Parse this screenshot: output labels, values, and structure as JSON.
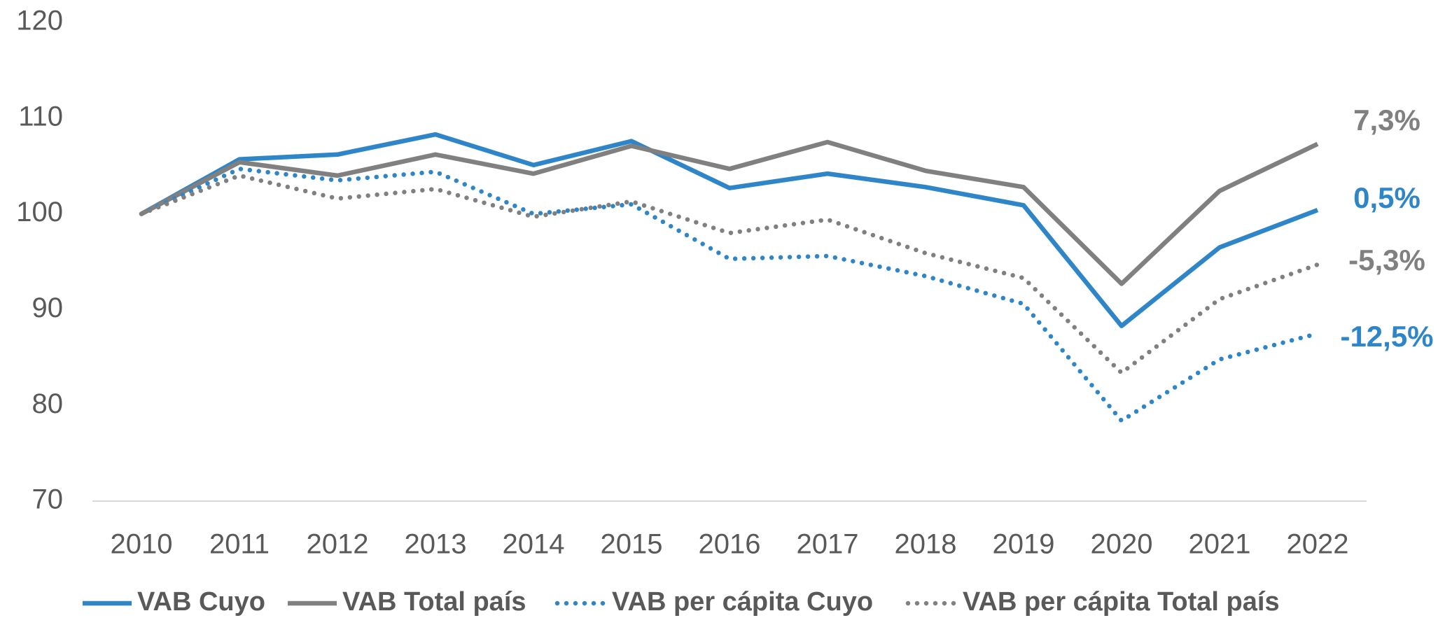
{
  "chart_data": {
    "type": "line",
    "categories": [
      "2010",
      "2011",
      "2012",
      "2013",
      "2014",
      "2015",
      "2016",
      "2017",
      "2018",
      "2019",
      "2020",
      "2021",
      "2022"
    ],
    "series": [
      {
        "name": "VAB Cuyo",
        "color": "#2e86c8",
        "style": "solid",
        "values": [
          100,
          105.7,
          106.2,
          108.3,
          105.1,
          107.6,
          102.7,
          104.2,
          102.8,
          100.9,
          88.3,
          96.5,
          100.4
        ]
      },
      {
        "name": "VAB Total país",
        "color": "#808080",
        "style": "solid",
        "values": [
          100,
          105.4,
          104.0,
          106.2,
          104.2,
          107.1,
          104.7,
          107.5,
          104.5,
          102.8,
          92.7,
          102.4,
          107.3
        ]
      },
      {
        "name": "VAB per cápita Cuyo",
        "color": "#2e86c8",
        "style": "dotted",
        "values": [
          100,
          104.7,
          103.5,
          104.4,
          100.0,
          101.0,
          95.3,
          95.6,
          93.5,
          90.6,
          78.4,
          84.8,
          87.5
        ]
      },
      {
        "name": "VAB per cápita Total país",
        "color": "#808080",
        "style": "dotted",
        "values": [
          100,
          104.0,
          101.6,
          102.6,
          99.7,
          101.3,
          98.0,
          99.4,
          95.9,
          93.3,
          83.4,
          91.1,
          94.7
        ]
      }
    ],
    "annotations": [
      {
        "text": "7,3%",
        "color": "#808080"
      },
      {
        "text": "0,5%",
        "color": "#2e86c8"
      },
      {
        "text": "-5,3%",
        "color": "#808080"
      },
      {
        "text": "-12,5%",
        "color": "#2e86c8"
      }
    ],
    "ylim": [
      70,
      120
    ],
    "yticks": [
      70,
      80,
      90,
      100,
      110,
      120
    ],
    "grid": false
  }
}
